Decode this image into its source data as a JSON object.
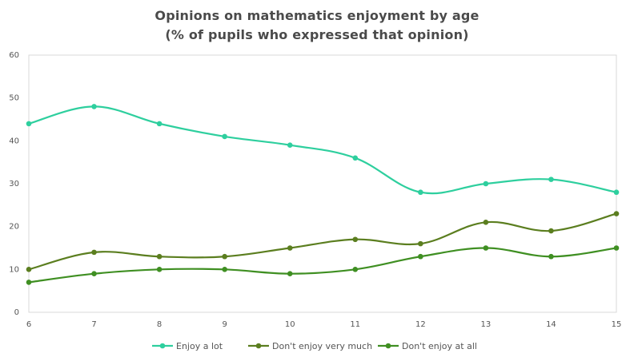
{
  "chart_data": {
    "type": "line",
    "title_lines": [
      "Opinions on mathematics  enjoyment by age",
      "(% of pupils who expressed that opinion)"
    ],
    "x": [
      6,
      7,
      8,
      9,
      10,
      11,
      12,
      13,
      14,
      15
    ],
    "x_ticks": [
      "6",
      "7",
      "8",
      "9",
      "10",
      "11",
      "12",
      "13",
      "14",
      "15"
    ],
    "y_ticks": [
      "0",
      "10",
      "20",
      "30",
      "40",
      "50",
      "60"
    ],
    "ylim": [
      0,
      60
    ],
    "grid": false,
    "legend_position": "bottom",
    "series": [
      {
        "name": "Enjoy a lot",
        "color": "#2ecf9e",
        "values": [
          44,
          48,
          44,
          41,
          39,
          36,
          28,
          30,
          31,
          28
        ]
      },
      {
        "name": "Don't enjoy very much",
        "color": "#5b7e1f",
        "values": [
          10,
          14,
          13,
          13,
          15,
          17,
          16,
          21,
          19,
          23
        ]
      },
      {
        "name": "Don't enjoy at all",
        "color": "#3f8f22",
        "values": [
          7,
          9,
          10,
          10,
          9,
          10,
          13,
          15,
          13,
          15
        ]
      }
    ]
  }
}
